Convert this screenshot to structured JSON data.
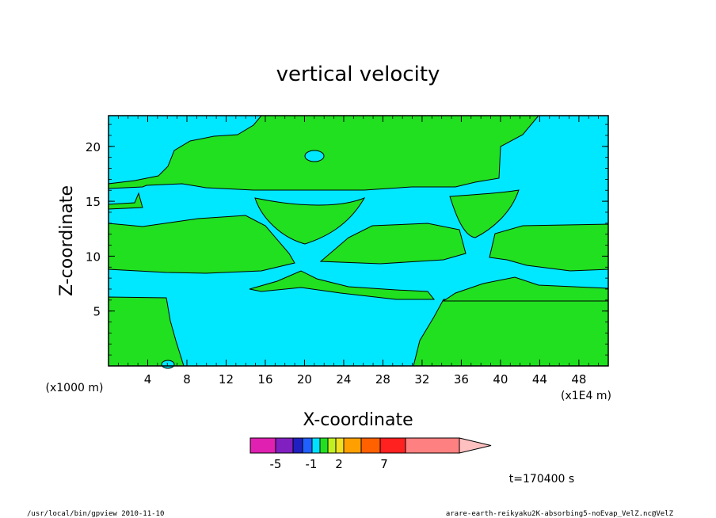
{
  "chart_data": {
    "type": "heatmap",
    "title": "vertical velocity",
    "xlabel": "X-coordinate",
    "ylabel": "Z-coordinate",
    "x_unit_label": "(x1000 m)",
    "x_scale_label": "(x1E4 m)",
    "xlim": [
      0,
      51
    ],
    "ylim": [
      0,
      22.8
    ],
    "x_ticks": [
      4,
      8,
      12,
      16,
      20,
      24,
      28,
      32,
      36,
      40,
      44,
      48
    ],
    "y_ticks": [
      5,
      10,
      15,
      20
    ],
    "colorbar": {
      "colors": [
        "#e020b0",
        "#8020c0",
        "#2020c0",
        "#2060ff",
        "#00e0ff",
        "#20e020",
        "#c0f020",
        "#f0e020",
        "#ffa000",
        "#ff6000",
        "#ff2020",
        "#ff8080",
        "#ffc0c0"
      ],
      "tick_labels": [
        "-5",
        "-1",
        "2",
        "7"
      ]
    },
    "time_label": "t=170400 s"
  },
  "footer": {
    "left": "/usr/local/bin/gpview   2010-11-10",
    "right": "arare-earth-reikyaku2K-absorbing5-noEvap_VelZ.nc@VelZ"
  }
}
